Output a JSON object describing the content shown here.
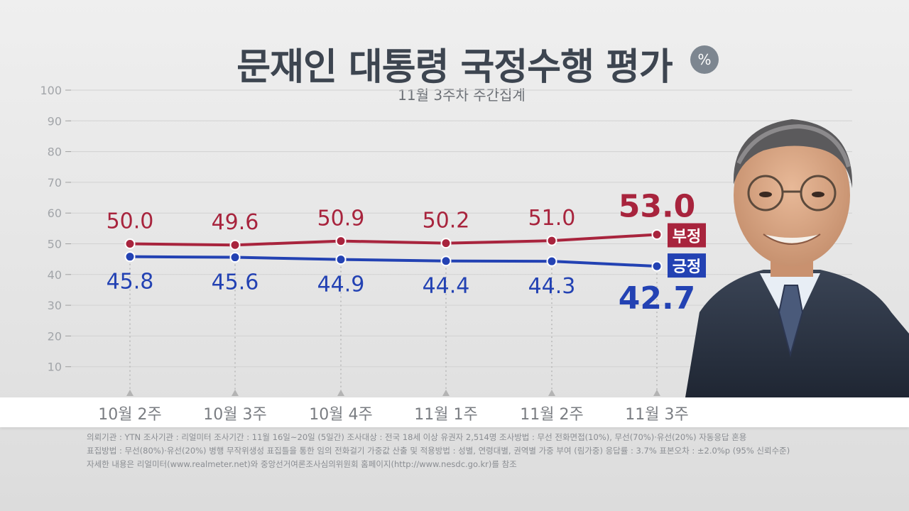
{
  "title": "문재인 대통령 국정수행 평가",
  "unit": "%",
  "subtitle": "11월 3주차 주간집계",
  "chart_data": {
    "type": "line",
    "categories": [
      "10월 2주",
      "10월 3주",
      "10월 4주",
      "11월 1주",
      "11월 2주",
      "11월 3주"
    ],
    "series": [
      {
        "name": "부정",
        "values": [
          50.0,
          49.6,
          50.9,
          50.2,
          51.0,
          53.0
        ],
        "color": "#a8243d"
      },
      {
        "name": "긍정",
        "values": [
          45.8,
          45.6,
          44.9,
          44.4,
          44.3,
          42.7
        ],
        "color": "#2342b3"
      }
    ],
    "value_labels": {
      "neg": [
        "50.0",
        "49.6",
        "50.9",
        "50.2",
        "51.0",
        "53.0"
      ],
      "pos": [
        "45.8",
        "45.6",
        "44.9",
        "44.4",
        "44.3",
        "42.7"
      ]
    },
    "yticks": [
      "10",
      "20",
      "30",
      "40",
      "50",
      "60",
      "70",
      "80",
      "90",
      "100"
    ],
    "ylim": [
      0,
      100
    ],
    "grid": true,
    "xlabel": "",
    "ylabel": ""
  },
  "footer": {
    "line1": "의뢰기관 : YTN     조사기관 : 리얼미터     조사기간 : 11월 16일~20일 (5일간)     조사대상 : 전국 18세 이상 유권자 2,514명     조사방법 : 무선 전화면접(10%), 무선(70%)·유선(20%) 자동응답 혼용",
    "line2": "표집방법 : 무선(80%)·유선(20%) 병행 무작위생성 표집틀을 통한 임의 전화걸기     가중값 산출 및 적용방법 : 성별, 연령대별, 권역별 가중 부여 (림가중)     응답률 : 3.7%     표본오차 : ±2.0%p (95% 신뢰수준)",
    "line3": "자세한 내용은 리얼미터(www.realmeter.net)와 중앙선거여론조사심의위원회 홈페이지(http://www.nesdc.go.kr)를 참조"
  }
}
